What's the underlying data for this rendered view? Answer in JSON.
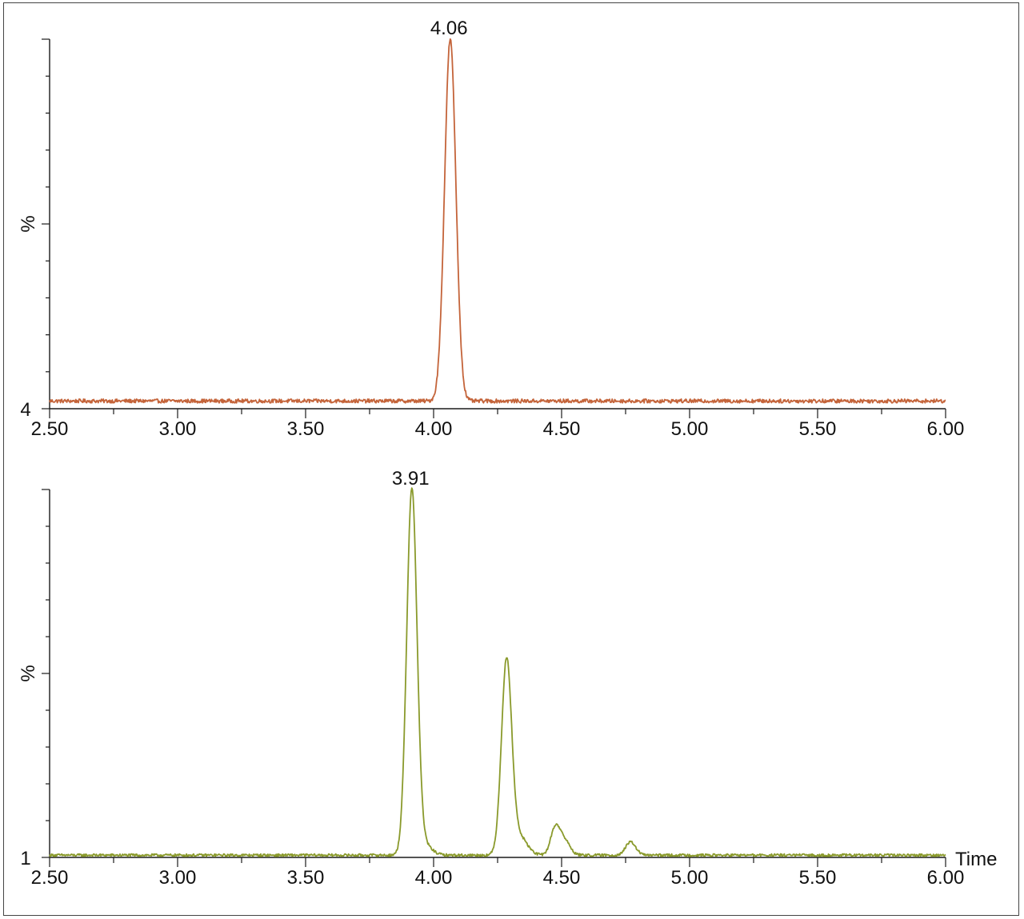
{
  "colors": {
    "axis": "#1a1a1a",
    "trace_top": "#c4643a",
    "trace_bottom": "#8a9a2c"
  },
  "chart_data": [
    {
      "type": "line",
      "title": "",
      "xlabel": "",
      "ylabel": "%",
      "xlim": [
        2.5,
        6.0
      ],
      "ylim": [
        4,
        100
      ],
      "y_min_label": "4",
      "x_ticks": [
        "2.50",
        "3.00",
        "3.50",
        "4.00",
        "4.50",
        "5.00",
        "5.50",
        "6.00"
      ],
      "grid": false,
      "peak_labels": [
        {
          "x": 4.06,
          "y": 100,
          "text": "4.06"
        }
      ],
      "series": [
        {
          "color": "#c4643a",
          "baseline": 6,
          "noise": 0.5,
          "peaks": [
            {
              "x": 4.065,
              "height": 94,
              "width": 0.022
            }
          ]
        }
      ]
    },
    {
      "type": "line",
      "title": "",
      "xlabel": "Time",
      "ylabel": "%",
      "xlim": [
        2.5,
        6.0
      ],
      "ylim": [
        1,
        100
      ],
      "y_min_label": "1",
      "x_ticks": [
        "2.50",
        "3.00",
        "3.50",
        "4.00",
        "4.50",
        "5.00",
        "5.50",
        "6.00"
      ],
      "grid": false,
      "peak_labels": [
        {
          "x": 3.91,
          "y": 100,
          "text": "3.91"
        }
      ],
      "series": [
        {
          "color": "#8a9a2c",
          "baseline": 1.6,
          "noise": 0.35,
          "peaks": [
            {
              "x": 3.915,
              "height": 98,
              "width": 0.02
            },
            {
              "x": 3.96,
              "height": 3,
              "width": 0.03
            },
            {
              "x": 4.285,
              "height": 52,
              "width": 0.02
            },
            {
              "x": 4.335,
              "height": 5,
              "width": 0.03
            },
            {
              "x": 4.475,
              "height": 7,
              "width": 0.018
            },
            {
              "x": 4.51,
              "height": 4,
              "width": 0.022
            },
            {
              "x": 4.77,
              "height": 3.5,
              "width": 0.02
            }
          ]
        }
      ]
    }
  ]
}
